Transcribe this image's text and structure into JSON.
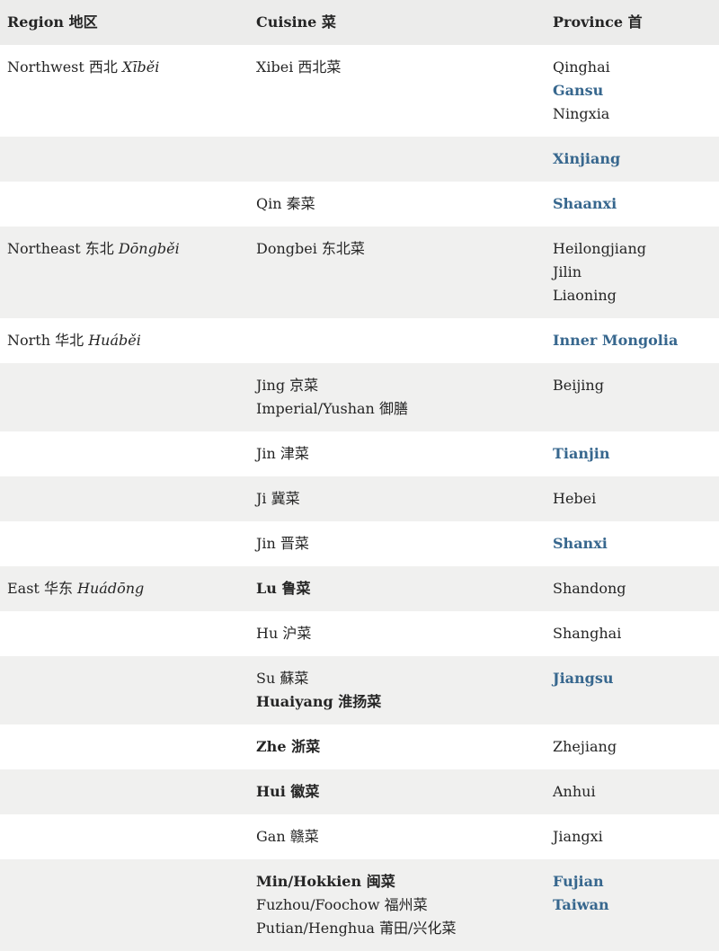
{
  "colors": {
    "text": "#252525",
    "link": "#37678e",
    "header_bg": "#ececeb",
    "alt_row_bg": "#f0f0ef"
  },
  "table": {
    "columns": [
      "Region 地区",
      "Cuisine 菜",
      "Province 首"
    ],
    "rows": [
      {
        "shade": "white",
        "region": {
          "text": "Northwest 西北",
          "pinyin": "Xīběi"
        },
        "cuisine": [
          {
            "text": "Xibei 西北菜"
          }
        ],
        "provinces": [
          {
            "text": "Qinghai"
          },
          {
            "text": "Gansu",
            "link": true
          },
          {
            "text": "Ningxia"
          }
        ]
      },
      {
        "shade": "gray",
        "region": null,
        "cuisine": [],
        "provinces": [
          {
            "text": "Xinjiang",
            "link": true
          }
        ]
      },
      {
        "shade": "white",
        "region": null,
        "cuisine": [
          {
            "text": "Qin 秦菜"
          }
        ],
        "provinces": [
          {
            "text": "Shaanxi",
            "link": true
          }
        ]
      },
      {
        "shade": "gray",
        "region": {
          "text": "Northeast 东北",
          "pinyin": "Dōngběi"
        },
        "cuisine": [
          {
            "text": "Dongbei 东北菜"
          }
        ],
        "provinces": [
          {
            "text": "Heilongjiang"
          },
          {
            "text": "Jilin"
          },
          {
            "text": "Liaoning"
          }
        ]
      },
      {
        "shade": "white",
        "region": {
          "text": "North 华北",
          "pinyin": "Huáběi"
        },
        "cuisine": [],
        "provinces": [
          {
            "text": "Inner Mongolia",
            "link": true
          }
        ]
      },
      {
        "shade": "gray",
        "region": null,
        "cuisine": [
          {
            "text": "Jing 京菜"
          },
          {
            "text": "Imperial/Yushan 御膳"
          }
        ],
        "provinces": [
          {
            "text": "Beijing"
          }
        ]
      },
      {
        "shade": "white",
        "region": null,
        "cuisine": [
          {
            "text": "Jin 津菜"
          }
        ],
        "provinces": [
          {
            "text": "Tianjin",
            "link": true
          }
        ]
      },
      {
        "shade": "gray",
        "region": null,
        "cuisine": [
          {
            "text": "Ji 冀菜"
          }
        ],
        "provinces": [
          {
            "text": "Hebei"
          }
        ]
      },
      {
        "shade": "white",
        "region": null,
        "cuisine": [
          {
            "text": "Jin 晋菜"
          }
        ],
        "provinces": [
          {
            "text": "Shanxi",
            "link": true
          }
        ]
      },
      {
        "shade": "gray",
        "region": {
          "text": "East 华东",
          "pinyin": "Huádōng"
        },
        "cuisine": [
          {
            "text": "Lu 鲁菜",
            "bold": true
          }
        ],
        "provinces": [
          {
            "text": "Shandong"
          }
        ]
      },
      {
        "shade": "white",
        "region": null,
        "cuisine": [
          {
            "text": "Hu 沪菜"
          }
        ],
        "provinces": [
          {
            "text": "Shanghai"
          }
        ]
      },
      {
        "shade": "gray",
        "region": null,
        "cuisine": [
          {
            "text": "Su 蘇菜"
          },
          {
            "text": "Huaiyang 淮扬菜",
            "bold": true
          }
        ],
        "provinces": [
          {
            "text": "Jiangsu",
            "link": true
          }
        ]
      },
      {
        "shade": "white",
        "region": null,
        "cuisine": [
          {
            "text": "Zhe 浙菜",
            "bold": true
          }
        ],
        "provinces": [
          {
            "text": "Zhejiang"
          }
        ]
      },
      {
        "shade": "gray",
        "region": null,
        "cuisine": [
          {
            "text": "Hui 徽菜",
            "bold": true
          }
        ],
        "provinces": [
          {
            "text": "Anhui"
          }
        ]
      },
      {
        "shade": "white",
        "region": null,
        "cuisine": [
          {
            "text": "Gan 赣菜"
          }
        ],
        "provinces": [
          {
            "text": "Jiangxi"
          }
        ]
      },
      {
        "shade": "gray",
        "region": null,
        "cuisine": [
          {
            "text": "Min/Hokkien 闽菜",
            "bold": true
          },
          {
            "text": "Fuzhou/Foochow 福州菜"
          },
          {
            "text": "Putian/Henghua 莆田/兴化菜"
          }
        ],
        "provinces": [
          {
            "text": "Fujian",
            "link": true
          },
          {
            "text": "Taiwan",
            "link": true
          }
        ]
      }
    ]
  }
}
